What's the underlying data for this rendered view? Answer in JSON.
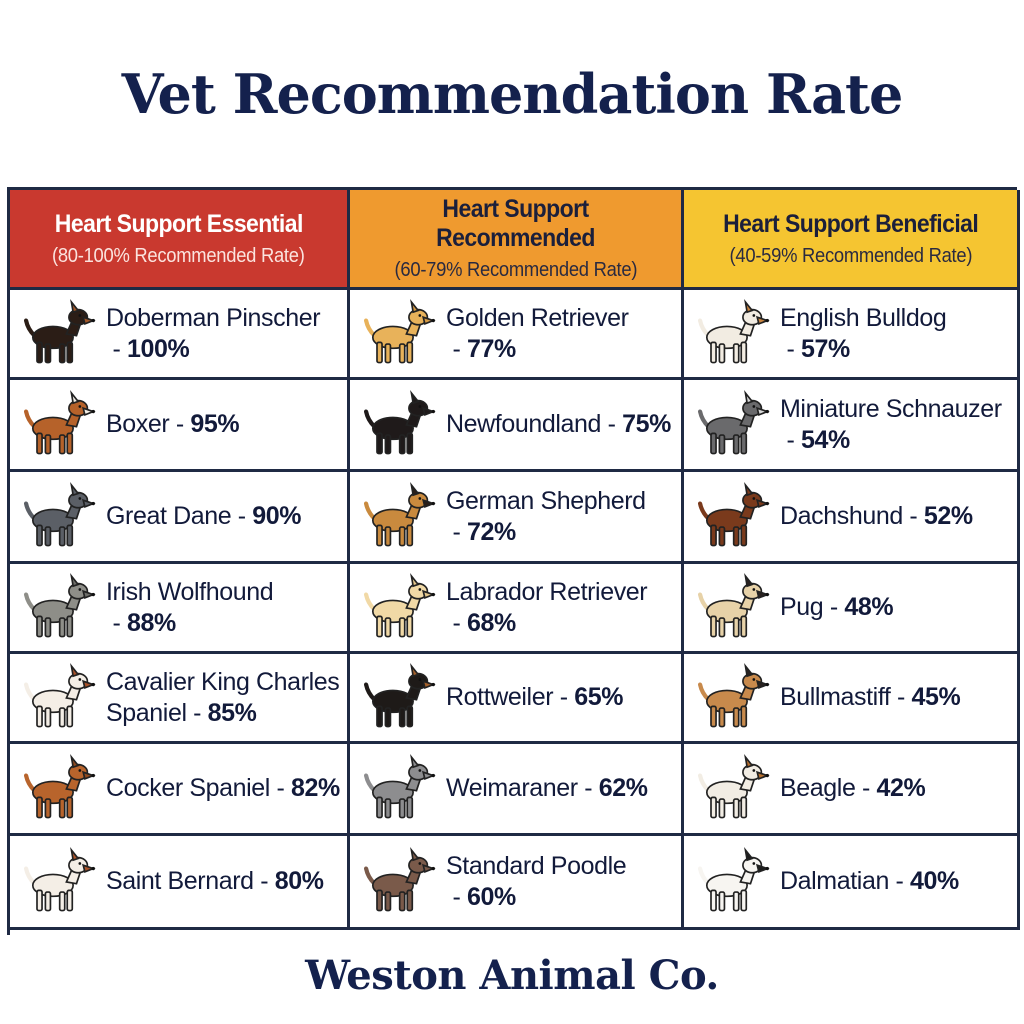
{
  "title": "Vet Recommendation Rate",
  "brand": "Weston Animal Co.",
  "colors": {
    "essential": "#c9392f",
    "recommended": "#ef9a2f",
    "beneficial": "#f5c531",
    "text": "#14214d"
  },
  "chart_data": {
    "type": "table",
    "title": "Vet Recommendation Rate",
    "columns": [
      {
        "header": "Heart Support Essential",
        "subheader": "(80-100% Recommended Rate)",
        "color": "#c9392f",
        "rows": [
          {
            "name": "Doberman Pinscher",
            "sep": " - ",
            "value": 100,
            "label": "100%",
            "icon": "doberman-icon",
            "fur": "#2b1d16",
            "accent": "#a0572a"
          },
          {
            "name": "Boxer",
            "sep": " - ",
            "value": 95,
            "label": "95%",
            "icon": "boxer-icon",
            "fur": "#b6622a",
            "accent": "#f4efe6"
          },
          {
            "name": "Great Dane",
            "sep": " - ",
            "value": 90,
            "label": "90%",
            "icon": "great-dane-icon",
            "fur": "#5b5f66",
            "accent": "#5b5f66"
          },
          {
            "name": "Irish Wolfhound",
            "sep": " - ",
            "value": 88,
            "label": "88%",
            "icon": "irish-wolfhound-icon",
            "fur": "#8e8e88",
            "accent": "#6f6f6a"
          },
          {
            "name": "Cavalier King Charles Spaniel",
            "sep": " - ",
            "value": 85,
            "label": "85%",
            "icon": "cavalier-icon",
            "fur": "#f4eee6",
            "accent": "#a9532a"
          },
          {
            "name": "Cocker Spaniel",
            "sep": " - ",
            "value": 82,
            "label": "82%",
            "icon": "cocker-spaniel-icon",
            "fur": "#b8642c",
            "accent": "#8e4a1f"
          },
          {
            "name": "Saint Bernard",
            "sep": " - ",
            "value": 80,
            "label": "80%",
            "icon": "saint-bernard-icon",
            "fur": "#f4eee6",
            "accent": "#a9532a"
          }
        ]
      },
      {
        "header": "Heart Support Recommended",
        "subheader": "(60-79% Recommended Rate)",
        "color": "#ef9a2f",
        "rows": [
          {
            "name": "Golden Retriever",
            "sep": " - ",
            "value": 77,
            "label": "77%",
            "icon": "golden-retriever-icon",
            "fur": "#e8b25a",
            "accent": "#d59a45"
          },
          {
            "name": "Newfoundland",
            "sep": " - ",
            "value": 75,
            "label": "75%",
            "icon": "newfoundland-icon",
            "fur": "#1f1a1a",
            "accent": "#1f1a1a"
          },
          {
            "name": "German Shepherd",
            "sep": " - ",
            "value": 72,
            "label": "72%",
            "icon": "german-shepherd-icon",
            "fur": "#c98a3e",
            "accent": "#2a1f18"
          },
          {
            "name": "Labrador Retriever",
            "sep": " - ",
            "value": 68,
            "label": "68%",
            "icon": "labrador-icon",
            "fur": "#f1d9a6",
            "accent": "#e4c68a"
          },
          {
            "name": "Rottweiler",
            "sep": " - ",
            "value": 65,
            "label": "65%",
            "icon": "rottweiler-icon",
            "fur": "#1e1a18",
            "accent": "#a4602a"
          },
          {
            "name": "Weimaraner",
            "sep": " - ",
            "value": 62,
            "label": "62%",
            "icon": "weimaraner-icon",
            "fur": "#8d8d8f",
            "accent": "#8d8d8f"
          },
          {
            "name": "Standard Poodle",
            "sep": " - ",
            "value": 60,
            "label": "60%",
            "icon": "poodle-icon",
            "fur": "#7a5a4a",
            "accent": "#7a5a4a"
          }
        ]
      },
      {
        "header": "Heart Support Beneficial",
        "subheader": "(40-59% Recommended Rate)",
        "color": "#f5c531",
        "rows": [
          {
            "name": "English Bulldog",
            "sep": " - ",
            "value": 57,
            "label": "57%",
            "icon": "english-bulldog-icon",
            "fur": "#f2ece2",
            "accent": "#c98440"
          },
          {
            "name": "Miniature Schnauzer",
            "sep": " - ",
            "value": 54,
            "label": "54%",
            "icon": "schnauzer-icon",
            "fur": "#6a6a6c",
            "accent": "#d7d7d7"
          },
          {
            "name": "Dachshund",
            "sep": " - ",
            "value": 52,
            "label": "52%",
            "icon": "dachshund-icon",
            "fur": "#7a3a1c",
            "accent": "#7a3a1c"
          },
          {
            "name": "Pug",
            "sep": " - ",
            "value": 48,
            "label": "48%",
            "icon": "pug-icon",
            "fur": "#e7d2a8",
            "accent": "#2a2220"
          },
          {
            "name": "Bullmastiff",
            "sep": " - ",
            "value": 45,
            "label": "45%",
            "icon": "bullmastiff-icon",
            "fur": "#c88a4c",
            "accent": "#2a2220"
          },
          {
            "name": "Beagle",
            "sep": " - ",
            "value": 42,
            "label": "42%",
            "icon": "beagle-icon",
            "fur": "#f2ede4",
            "accent": "#b7702f"
          },
          {
            "name": "Dalmatian",
            "sep": " - ",
            "value": 40,
            "label": "40%",
            "icon": "dalmatian-icon",
            "fur": "#f7f5f1",
            "accent": "#1d1d1d"
          }
        ]
      }
    ]
  }
}
